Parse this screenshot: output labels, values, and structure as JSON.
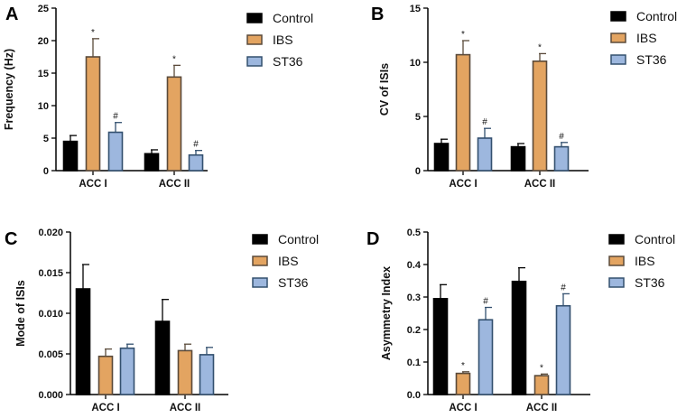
{
  "colors": {
    "Control": {
      "fill": "#000000",
      "stroke": "#000000"
    },
    "IBS": {
      "fill": "#E3A461",
      "stroke": "#5a4a3a"
    },
    "ST36": {
      "fill": "#9DB7DE",
      "stroke": "#33506f"
    }
  },
  "chart_data": [
    {
      "panel": "A",
      "type": "bar",
      "ylabel": "Frequency (Hz)",
      "ylim": [
        0,
        25
      ],
      "yticks": [
        "0",
        "5",
        "10",
        "15",
        "20",
        "25"
      ],
      "categories": [
        "ACC I",
        "ACC II"
      ],
      "series": [
        {
          "name": "Control",
          "values": [
            4.5,
            2.6
          ],
          "errors": [
            0.9,
            0.6
          ],
          "sig": [
            "",
            ""
          ]
        },
        {
          "name": "IBS",
          "values": [
            17.5,
            14.4
          ],
          "errors": [
            2.8,
            1.8
          ],
          "sig": [
            "*",
            "*"
          ]
        },
        {
          "name": "ST36",
          "values": [
            5.9,
            2.4
          ],
          "errors": [
            1.5,
            0.7
          ],
          "sig": [
            "#",
            "#"
          ]
        }
      ],
      "legend": [
        "Control",
        "IBS",
        "ST36"
      ]
    },
    {
      "panel": "B",
      "type": "bar",
      "ylabel": "CV of ISIs",
      "ylim": [
        0,
        15
      ],
      "yticks": [
        "0",
        "5",
        "10",
        "15"
      ],
      "categories": [
        "ACC I",
        "ACC II"
      ],
      "series": [
        {
          "name": "Control",
          "values": [
            2.5,
            2.2
          ],
          "errors": [
            0.4,
            0.3
          ],
          "sig": [
            "",
            ""
          ]
        },
        {
          "name": "IBS",
          "values": [
            10.7,
            10.1
          ],
          "errors": [
            1.3,
            0.7
          ],
          "sig": [
            "*",
            "*"
          ]
        },
        {
          "name": "ST36",
          "values": [
            3.0,
            2.2
          ],
          "errors": [
            0.9,
            0.4
          ],
          "sig": [
            "#",
            "#"
          ]
        }
      ],
      "legend": [
        "Control",
        "IBS",
        "ST36"
      ]
    },
    {
      "panel": "C",
      "type": "bar",
      "ylabel": "Mode of ISIs",
      "ylim": [
        0,
        0.02
      ],
      "yticks": [
        "0.000",
        "0.005",
        "0.010",
        "0.015",
        "0.020"
      ],
      "categories": [
        "ACC I",
        "ACC II"
      ],
      "series": [
        {
          "name": "Control",
          "values": [
            0.013,
            0.009
          ],
          "errors": [
            0.003,
            0.0027
          ],
          "sig": [
            "",
            ""
          ]
        },
        {
          "name": "IBS",
          "values": [
            0.0047,
            0.0054
          ],
          "errors": [
            0.0009,
            0.0008
          ],
          "sig": [
            "",
            ""
          ]
        },
        {
          "name": "ST36",
          "values": [
            0.0057,
            0.0049
          ],
          "errors": [
            0.0005,
            0.0009
          ],
          "sig": [
            "",
            ""
          ]
        }
      ],
      "legend": [
        "Control",
        "IBS",
        "ST36"
      ]
    },
    {
      "panel": "D",
      "type": "bar",
      "ylabel": "Asymmetry Index",
      "ylim": [
        0,
        0.5
      ],
      "yticks": [
        "0.0",
        "0.1",
        "0.2",
        "0.3",
        "0.4",
        "0.5"
      ],
      "categories": [
        "ACC I",
        "ACC II"
      ],
      "series": [
        {
          "name": "Control",
          "values": [
            0.295,
            0.348
          ],
          "errors": [
            0.043,
            0.042
          ],
          "sig": [
            "",
            ""
          ]
        },
        {
          "name": "IBS",
          "values": [
            0.065,
            0.058
          ],
          "errors": [
            0.005,
            0.005
          ],
          "sig": [
            "*",
            "*"
          ]
        },
        {
          "name": "ST36",
          "values": [
            0.23,
            0.273
          ],
          "errors": [
            0.038,
            0.037
          ],
          "sig": [
            "#",
            "#"
          ]
        }
      ],
      "legend": [
        "Control",
        "IBS",
        "ST36"
      ]
    }
  ]
}
